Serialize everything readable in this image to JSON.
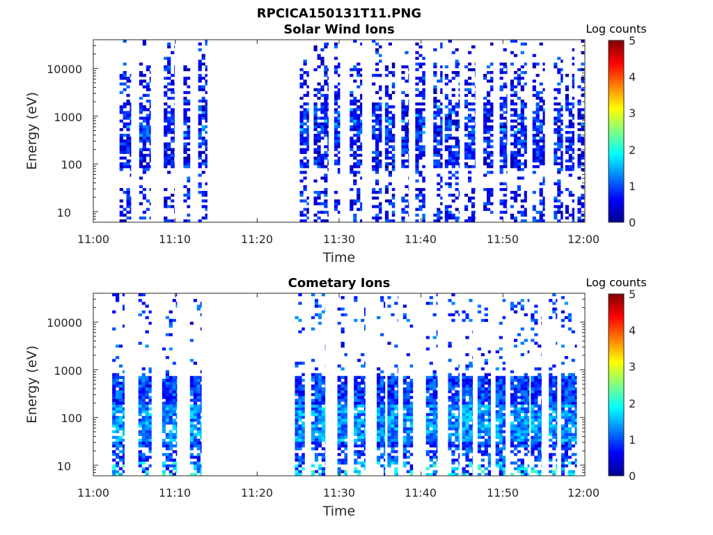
{
  "figure_title": "RPCICA150131T11.PNG",
  "colormap": [
    "#00008f",
    "#0000ff",
    "#0080ff",
    "#00ffff",
    "#80ff80",
    "#ffff00",
    "#ff8000",
    "#ff0000",
    "#800000"
  ],
  "chart_data": [
    {
      "type": "heatmap",
      "title": "Solar Wind Ions",
      "xlabel": "Time",
      "ylabel": "Energy (eV)",
      "colorbar_label": "Log counts",
      "x_ticks": [
        "11:00",
        "11:10",
        "11:20",
        "11:30",
        "11:40",
        "11:50",
        "12:00"
      ],
      "y_ticks": [
        "10",
        "100",
        "1000",
        "10000"
      ],
      "y_scale": "log",
      "ylim": [
        6,
        40000
      ],
      "clim": [
        0,
        5
      ],
      "colorbar_ticks": [
        "0",
        "1",
        "2",
        "3",
        "4",
        "5"
      ],
      "mode": "solar",
      "active_intervals": [
        [
          3.2,
          4.6
        ],
        [
          5.6,
          7.0
        ],
        [
          8.6,
          9.9
        ],
        [
          11.0,
          11.8
        ],
        [
          12.8,
          13.9
        ],
        [
          25.2,
          26.3
        ],
        [
          26.9,
          28.7
        ],
        [
          29.4,
          30.1
        ],
        [
          31.3,
          32.8
        ],
        [
          34.0,
          35.2
        ],
        [
          35.6,
          36.8
        ],
        [
          37.6,
          38.5
        ],
        [
          39.3,
          40.5
        ],
        [
          41.5,
          42.6
        ],
        [
          42.9,
          44.7
        ],
        [
          45.3,
          46.6
        ],
        [
          47.6,
          48.8
        ],
        [
          49.6,
          50.5
        ],
        [
          50.9,
          52.9
        ],
        [
          53.6,
          55.1
        ],
        [
          56.2,
          57.3
        ],
        [
          57.6,
          58.7
        ],
        [
          59.1,
          59.9
        ]
      ],
      "seed": 7
    },
    {
      "type": "heatmap",
      "title": "Cometary Ions",
      "xlabel": "Time",
      "ylabel": "Energy (eV)",
      "colorbar_label": "Log counts",
      "x_ticks": [
        "11:00",
        "11:10",
        "11:20",
        "11:30",
        "11:40",
        "11:50",
        "12:00"
      ],
      "y_ticks": [
        "10",
        "100",
        "1000",
        "10000"
      ],
      "y_scale": "log",
      "ylim": [
        6,
        40000
      ],
      "clim": [
        0,
        5
      ],
      "colorbar_ticks": [
        "0",
        "1",
        "2",
        "3",
        "4",
        "5"
      ],
      "mode": "comet",
      "active_intervals": [
        [
          2.3,
          3.8
        ],
        [
          5.5,
          7.1
        ],
        [
          8.4,
          10.2
        ],
        [
          11.8,
          13.2
        ],
        [
          24.6,
          25.8
        ],
        [
          26.6,
          28.3
        ],
        [
          29.8,
          31.0
        ],
        [
          31.8,
          33.2
        ],
        [
          34.6,
          35.6
        ],
        [
          35.9,
          37.2
        ],
        [
          37.8,
          39.0
        ],
        [
          40.6,
          42.0
        ],
        [
          43.3,
          44.7
        ],
        [
          45.0,
          46.3
        ],
        [
          46.9,
          48.5
        ],
        [
          49.1,
          50.3
        ],
        [
          50.9,
          53.2
        ],
        [
          53.4,
          54.7
        ],
        [
          55.6,
          56.6
        ],
        [
          57.1,
          59.0
        ]
      ],
      "seed": 19
    }
  ]
}
